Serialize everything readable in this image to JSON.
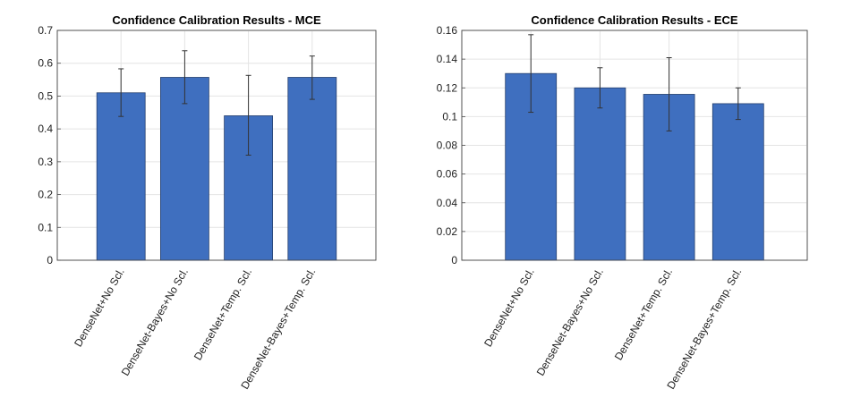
{
  "chart_data": [
    {
      "type": "bar",
      "title": "Confidence Calibration Results - MCE",
      "categories": [
        "DenseNet+No Scl.",
        "DenseNet-Bayes+No Scl.",
        "DenseNet+Temp. Scl.",
        "DenseNet-Bayes+Temp. Scl."
      ],
      "values": [
        0.51,
        0.557,
        0.44,
        0.557
      ],
      "error_low": [
        0.438,
        0.477,
        0.32,
        0.49
      ],
      "error_high": [
        0.583,
        0.638,
        0.563,
        0.622
      ],
      "ylim": [
        0,
        0.7
      ],
      "yticks": [
        0,
        0.1,
        0.2,
        0.3,
        0.4,
        0.5,
        0.6,
        0.7
      ],
      "ytick_labels": [
        "0",
        "0.1",
        "0.2",
        "0.3",
        "0.4",
        "0.5",
        "0.6",
        "0.7"
      ],
      "xlabel": "",
      "ylabel": "",
      "grid": true,
      "color": "#3f6fbf"
    },
    {
      "type": "bar",
      "title": "Confidence Calibration Results - ECE",
      "categories": [
        "DenseNet+No Scl.",
        "DenseNet-Bayes+No Scl.",
        "DenseNet+Temp. Scl.",
        "DenseNet-Bayes+Temp. Scl."
      ],
      "values": [
        0.13,
        0.12,
        0.1155,
        0.109
      ],
      "error_low": [
        0.103,
        0.106,
        0.09,
        0.098
      ],
      "error_high": [
        0.157,
        0.134,
        0.141,
        0.12
      ],
      "ylim": [
        0,
        0.16
      ],
      "yticks": [
        0,
        0.02,
        0.04,
        0.06,
        0.08,
        0.1,
        0.12,
        0.14,
        0.16
      ],
      "ytick_labels": [
        "0",
        "0.02",
        "0.04",
        "0.06",
        "0.08",
        "0.1",
        "0.12",
        "0.14",
        "0.16"
      ],
      "xlabel": "",
      "ylabel": "",
      "grid": true,
      "color": "#3f6fbf"
    }
  ]
}
